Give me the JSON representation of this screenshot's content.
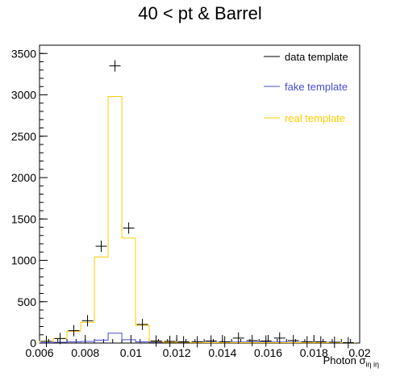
{
  "chart_data": {
    "type": "histogram",
    "title": "40 < pt & Barrel",
    "xlabel": "Photon σ",
    "xlabel_sub": "iη iη",
    "ylabel": "",
    "xlim": [
      0.006,
      0.02
    ],
    "ylim": [
      0,
      3600
    ],
    "bin_edges": [
      0.006,
      0.0066,
      0.0072,
      0.0078,
      0.0084,
      0.009,
      0.0096,
      0.0102,
      0.0108,
      0.0114,
      0.012,
      0.0126,
      0.0132,
      0.0138,
      0.0144,
      0.015,
      0.0156,
      0.0162,
      0.0168,
      0.0174,
      0.018,
      0.0186,
      0.0192,
      0.0198
    ],
    "x_ticks": [
      "0.006",
      "0.008",
      "0.01",
      "0.012",
      "0.014",
      "0.016",
      "0.018",
      "0.02"
    ],
    "y_ticks": [
      "0",
      "500",
      "1000",
      "1500",
      "2000",
      "2500",
      "3000",
      "3500"
    ],
    "series": [
      {
        "name": "data template",
        "color": "#000000",
        "style": "markers",
        "values": [
          20,
          55,
          150,
          270,
          1170,
          3350,
          1390,
          225,
          25,
          20,
          15,
          15,
          25,
          15,
          60,
          30,
          25,
          60,
          30,
          15,
          15,
          10,
          5
        ]
      },
      {
        "name": "fake template",
        "color": "#4b4bd9",
        "style": "step",
        "values": [
          5,
          10,
          15,
          20,
          35,
          120,
          40,
          15,
          10,
          10,
          10,
          10,
          10,
          10,
          12,
          12,
          12,
          12,
          10,
          10,
          8,
          8,
          5
        ]
      },
      {
        "name": "real template",
        "color": "#ffcc00",
        "style": "step",
        "values": [
          20,
          55,
          140,
          250,
          1040,
          2980,
          1270,
          215,
          20,
          10,
          10,
          5,
          5,
          5,
          5,
          5,
          5,
          5,
          5,
          5,
          5,
          5,
          5
        ]
      }
    ],
    "legend_position": "top-right",
    "grid": false
  }
}
